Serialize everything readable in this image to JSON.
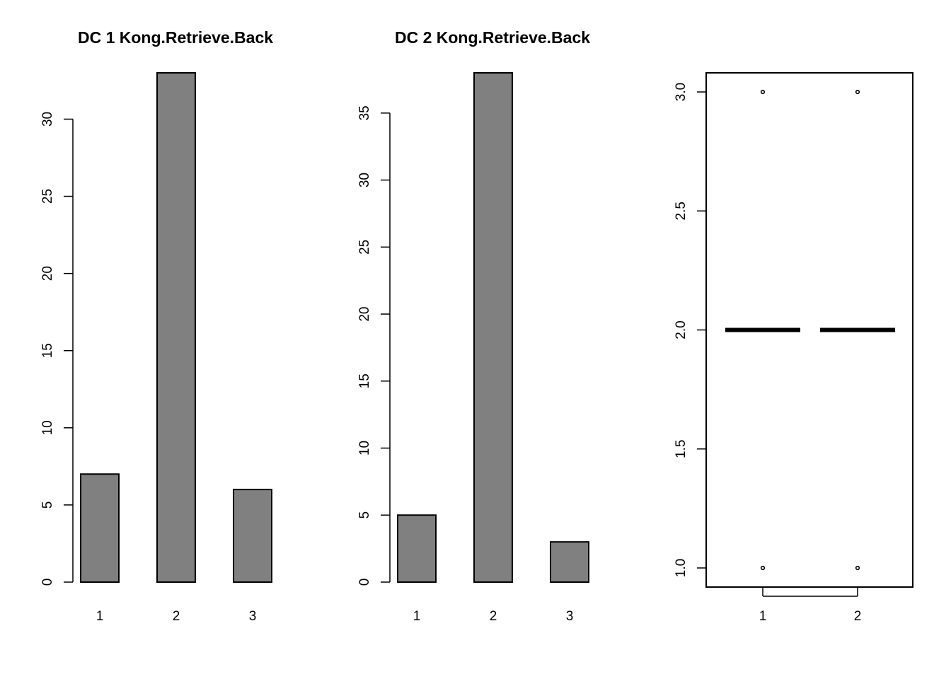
{
  "colors": {
    "bar_fill": "#808080",
    "stroke": "#000000",
    "background": "#ffffff"
  },
  "chart_data": [
    {
      "type": "bar",
      "title": "DC 1 Kong.Retrieve.Back",
      "categories": [
        "1",
        "2",
        "3"
      ],
      "values": [
        7,
        33,
        6
      ],
      "yticks": [
        "0",
        "5",
        "10",
        "15",
        "20",
        "25",
        "30"
      ],
      "ylim": [
        0,
        33
      ],
      "grid": false
    },
    {
      "type": "bar",
      "title": "DC 2 Kong.Retrieve.Back",
      "categories": [
        "1",
        "2",
        "3"
      ],
      "values": [
        5,
        38,
        3
      ],
      "yticks": [
        "0",
        "5",
        "10",
        "15",
        "20",
        "25",
        "30",
        "35"
      ],
      "ylim": [
        0,
        38
      ],
      "grid": false
    },
    {
      "type": "boxplot",
      "title": "",
      "categories": [
        "1",
        "2"
      ],
      "series": [
        {
          "median": 2.0,
          "q1": 2.0,
          "q3": 2.0,
          "whisker_low": 2.0,
          "whisker_high": 2.0,
          "outliers": [
            3.0,
            1.0
          ]
        },
        {
          "median": 2.0,
          "q1": 2.0,
          "q3": 2.0,
          "whisker_low": 2.0,
          "whisker_high": 2.0,
          "outliers": [
            3.0,
            1.0
          ]
        }
      ],
      "yticks": [
        "1.0",
        "1.5",
        "2.0",
        "2.5",
        "3.0"
      ],
      "ylim": [
        1.0,
        3.0
      ],
      "grid": false
    }
  ]
}
